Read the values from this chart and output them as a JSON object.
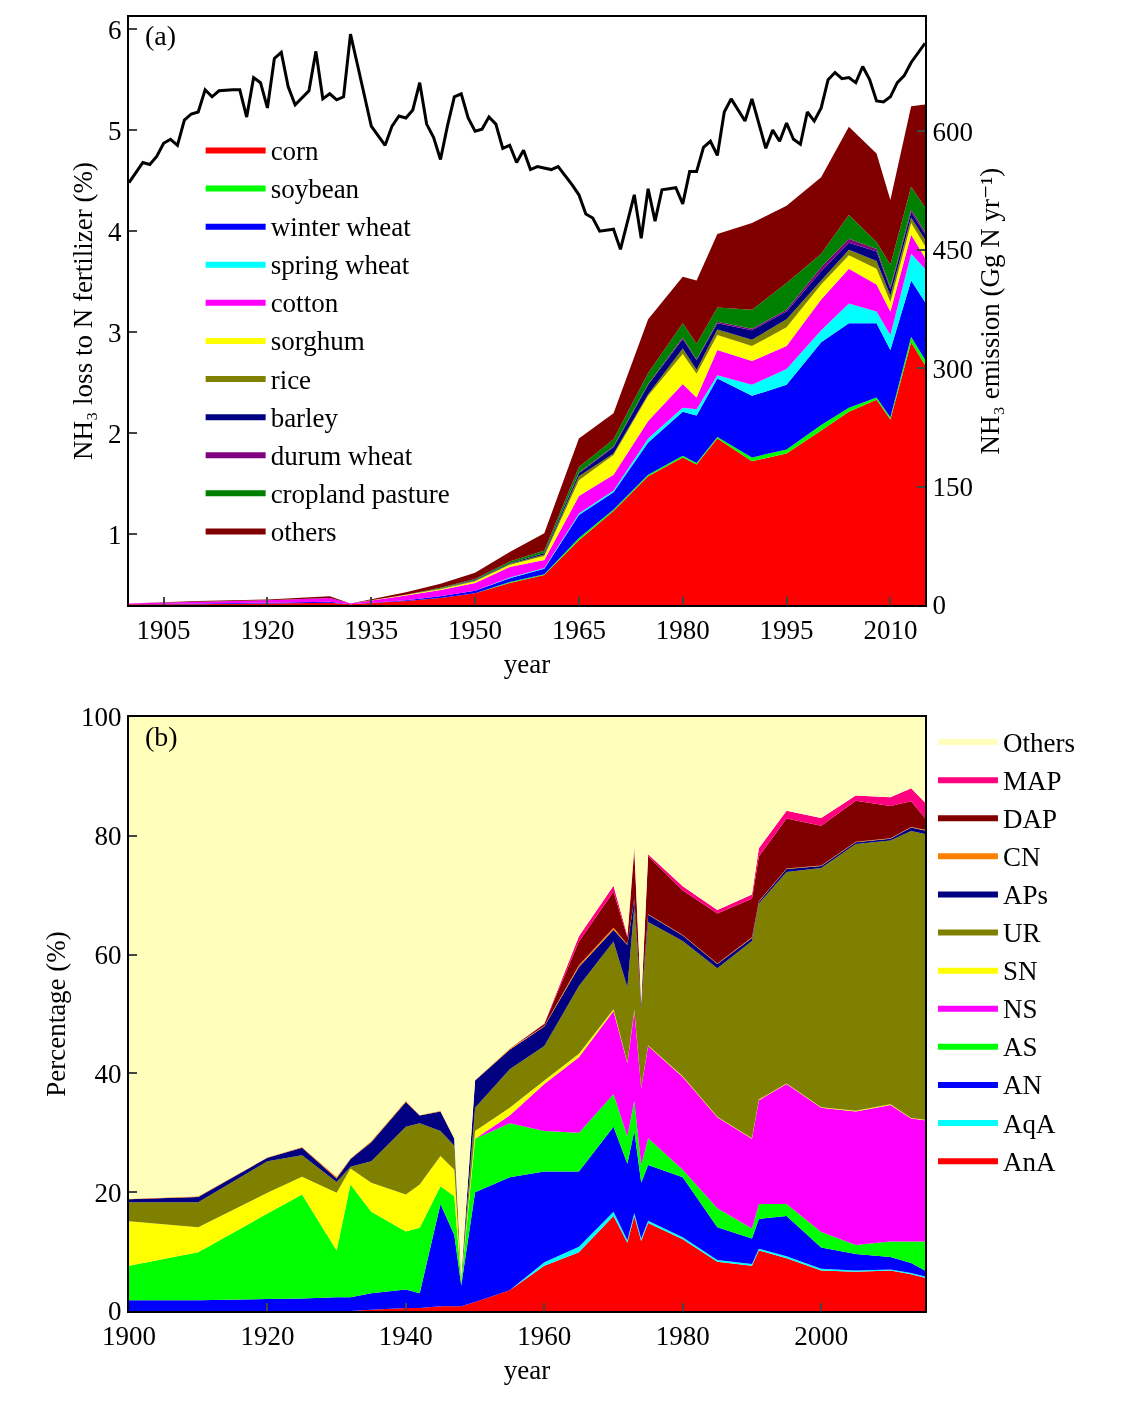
{
  "chart_data": [
    {
      "type": "area",
      "title": "(a)",
      "xlabel": "year",
      "ylabel": "NH₃ loss to N fertilizer (%)",
      "y2label": "NH₃ emission (Gg N yr⁻¹)",
      "stacked": true,
      "legend": "left",
      "xlim": [
        1900,
        2015
      ],
      "xticks": [
        1905,
        1920,
        1935,
        1950,
        1965,
        1980,
        1995,
        2010
      ],
      "ylim": [
        0.3,
        6.12
      ],
      "yticks": [
        1,
        2,
        3,
        4,
        5,
        6
      ],
      "y2lim": [
        0,
        745
      ],
      "y2ticks": [
        0,
        150,
        300,
        450,
        600
      ],
      "x": [
        1900,
        1910,
        1920,
        1929,
        1932,
        1940,
        1945,
        1950,
        1955,
        1960,
        1965,
        1970,
        1975,
        1980,
        1982,
        1985,
        1990,
        1995,
        2000,
        2004,
        2008,
        2010,
        2013,
        2015
      ],
      "series": [
        {
          "name": "corn",
          "color": "#ff0000",
          "axis": "y2",
          "values": [
            1,
            1,
            2,
            3,
            1,
            5,
            9,
            15,
            28,
            38,
            82,
            119,
            163,
            187,
            178,
            211,
            182,
            192,
            221,
            245,
            260,
            235,
            333,
            304
          ]
        },
        {
          "name": "soybean",
          "color": "#00ff00",
          "axis": "y2",
          "values": [
            0,
            0,
            0,
            0,
            0,
            0,
            0,
            0,
            1,
            1,
            3,
            2,
            2,
            2,
            2,
            2,
            5,
            5,
            7,
            5,
            3,
            3,
            7,
            7
          ]
        },
        {
          "name": "winter wheat",
          "color": "#0000ff",
          "axis": "y2",
          "values": [
            0,
            1,
            1,
            1,
            0,
            1,
            2,
            3,
            5,
            7,
            29,
            22,
            41,
            56,
            60,
            74,
            78,
            82,
            105,
            107,
            94,
            85,
            71,
            73
          ]
        },
        {
          "name": "spring wheat",
          "color": "#00ffff",
          "axis": "y2",
          "values": [
            0,
            0,
            0,
            0,
            0,
            0,
            0,
            0,
            1,
            1,
            2,
            2,
            5,
            5,
            8,
            4,
            14,
            20,
            15,
            25,
            15,
            19,
            34,
            42
          ]
        },
        {
          "name": "cotton",
          "color": "#ff00ff",
          "axis": "y2",
          "values": [
            1,
            2,
            3,
            5,
            1,
            6,
            8,
            10,
            13,
            10,
            22,
            20,
            22,
            30,
            15,
            32,
            30,
            29,
            39,
            44,
            34,
            30,
            24,
            14
          ]
        },
        {
          "name": "sorghum",
          "color": "#ffff00",
          "axis": "y2",
          "values": [
            0,
            0,
            0,
            0,
            0,
            1,
            1,
            2,
            3,
            5,
            20,
            25,
            32,
            38,
            30,
            19,
            19,
            24,
            19,
            17,
            20,
            12,
            15,
            15
          ]
        },
        {
          "name": "rice",
          "color": "#808000",
          "axis": "y2",
          "values": [
            0,
            0,
            0,
            0,
            0,
            0,
            1,
            1,
            1,
            2,
            5,
            2,
            2,
            7,
            5,
            7,
            8,
            10,
            5,
            7,
            10,
            8,
            7,
            8
          ]
        },
        {
          "name": "barley",
          "color": "#000080",
          "axis": "y2",
          "values": [
            0,
            0,
            0,
            0,
            0,
            0,
            0,
            1,
            1,
            2,
            4,
            8,
            12,
            12,
            12,
            8,
            12,
            10,
            12,
            9,
            12,
            8,
            7,
            7
          ]
        },
        {
          "name": "durum wheat",
          "color": "#800080",
          "axis": "y2",
          "values": [
            0,
            0,
            0,
            0,
            0,
            0,
            0,
            0,
            0,
            0,
            1,
            1,
            1,
            2,
            1,
            2,
            2,
            2,
            5,
            5,
            3,
            3,
            3,
            3
          ]
        },
        {
          "name": "cropland pasture",
          "color": "#008000",
          "axis": "y2",
          "values": [
            0,
            0,
            0,
            0,
            0,
            0,
            1,
            1,
            2,
            3,
            7,
            9,
            14,
            18,
            20,
            18,
            24,
            34,
            17,
            30,
            9,
            28,
            29,
            31
          ]
        },
        {
          "name": "others",
          "color": "#800000",
          "axis": "y2",
          "values": [
            0,
            1,
            1,
            2,
            0,
            3,
            5,
            8,
            12,
            22,
            36,
            33,
            68,
            59,
            80,
            93,
            110,
            98,
            97,
            112,
            112,
            82,
            102,
            130
          ]
        },
        {
          "type": "line",
          "color": "#000000",
          "line_style": "solid",
          "x": [
            1900,
            1902,
            1903,
            1904,
            1905,
            1906,
            1907,
            1908,
            1909,
            1910,
            1911,
            1912,
            1913,
            1915,
            1916,
            1917,
            1918,
            1919,
            1920,
            1921,
            1922,
            1923,
            1924,
            1926,
            1927,
            1928,
            1929,
            1930,
            1931,
            1932,
            1933,
            1935,
            1937,
            1938,
            1939,
            1940,
            1941,
            1942,
            1943,
            1944,
            1945,
            1946,
            1947,
            1948,
            1949,
            1950,
            1951,
            1952,
            1953,
            1954,
            1955,
            1956,
            1957,
            1958,
            1959,
            1961,
            1962,
            1964,
            1965,
            1966,
            1967,
            1968,
            1970,
            1971,
            1973,
            1974,
            1975,
            1976,
            1977,
            1979,
            1980,
            1981,
            1982,
            1983,
            1984,
            1985,
            1986,
            1987,
            1989,
            1990,
            1992,
            1993,
            1994,
            1995,
            1996,
            1997,
            1998,
            1999,
            2000,
            2001,
            2002,
            2003,
            2004,
            2005,
            2006,
            2007,
            2008,
            2009,
            2010,
            2011,
            2012,
            2013,
            2015
          ],
          "values": [
            4.48,
            4.68,
            4.66,
            4.74,
            4.87,
            4.91,
            4.85,
            5.1,
            5.16,
            5.18,
            5.4,
            5.33,
            5.39,
            5.4,
            5.4,
            5.13,
            5.52,
            5.47,
            5.22,
            5.71,
            5.77,
            5.43,
            5.25,
            5.39,
            5.78,
            5.31,
            5.36,
            5.3,
            5.33,
            5.95,
            5.65,
            5.04,
            4.85,
            5.04,
            5.14,
            5.12,
            5.2,
            5.47,
            5.06,
            4.93,
            4.71,
            5.04,
            5.33,
            5.36,
            5.12,
            4.99,
            5.01,
            5.13,
            5.06,
            4.82,
            4.85,
            4.68,
            4.8,
            4.61,
            4.64,
            4.61,
            4.64,
            4.46,
            4.36,
            4.17,
            4.13,
            4.0,
            4.02,
            3.82,
            4.36,
            3.93,
            4.42,
            4.1,
            4.41,
            4.43,
            4.27,
            4.59,
            4.59,
            4.83,
            4.89,
            4.75,
            5.18,
            5.31,
            5.09,
            5.31,
            4.82,
            5.0,
            4.89,
            5.07,
            4.91,
            4.86,
            5.18,
            5.09,
            5.22,
            5.5,
            5.57,
            5.51,
            5.52,
            5.47,
            5.63,
            5.5,
            5.29,
            5.28,
            5.33,
            5.47,
            5.54,
            5.67,
            5.86
          ]
        }
      ]
    },
    {
      "type": "area",
      "title": "(b)",
      "xlabel": "year",
      "ylabel": "Percentage (%)",
      "stacked": true,
      "legend": "right",
      "xlim": [
        1900,
        2015
      ],
      "xticks": [
        1900,
        1920,
        1940,
        1960,
        1980,
        2000
      ],
      "ylim": [
        0,
        100
      ],
      "yticks": [
        0,
        20,
        40,
        60,
        80,
        100
      ],
      "x": [
        1900,
        1910,
        1920,
        1925,
        1930,
        1932,
        1935,
        1940,
        1942,
        1945,
        1947,
        1948,
        1950,
        1955,
        1960,
        1965,
        1970,
        1972,
        1973,
        1974,
        1975,
        1980,
        1985,
        1990,
        1991,
        1995,
        2000,
        2005,
        2010,
        2013,
        2015
      ],
      "series": [
        {
          "name": "AnA",
          "color": "#ff0000",
          "values": [
            0,
            0,
            0,
            0,
            0,
            0,
            0.2,
            0.5,
            0.5,
            0.8,
            0.8,
            0.8,
            1.5,
            3.5,
            7.6,
            9.9,
            16.0,
            11.5,
            16.0,
            11.8,
            14.8,
            12.1,
            8.3,
            7.6,
            10.2,
            8.9,
            6.8,
            6.6,
            6.8,
            6.2,
            5.6
          ]
        },
        {
          "name": "AqA",
          "color": "#00ffff",
          "values": [
            0,
            0,
            0,
            0,
            0,
            0,
            0,
            0,
            0,
            0,
            0,
            0,
            0,
            0,
            0.6,
            0.9,
            0.7,
            0.4,
            0.5,
            0.4,
            0.4,
            0.3,
            0.3,
            0.3,
            0.3,
            0.3,
            0.3,
            0.2,
            0.2,
            0.2,
            0.2
          ]
        },
        {
          "name": "AN",
          "color": "#0000ff",
          "values": [
            1.8,
            1.8,
            2,
            2.1,
            2.3,
            2.3,
            2.8,
            3.1,
            2.5,
            17.2,
            12.0,
            3.5,
            18.5,
            19.0,
            15.3,
            12.7,
            14.3,
            12.9,
            13.8,
            9.4,
            9.4,
            10.1,
            5.5,
            4.3,
            5.0,
            6.8,
            3.6,
            2.8,
            2.1,
            1.7,
            1.0
          ]
        },
        {
          "name": "AS",
          "color": "#00ff00",
          "values": [
            5.8,
            8.1,
            14.4,
            17.5,
            7.9,
            19.0,
            13.7,
            9.8,
            11.0,
            3.0,
            6.5,
            0.6,
            9.0,
            9.1,
            6.8,
            6.5,
            5.5,
            4.6,
            5.1,
            3.0,
            4.5,
            1.3,
            3.2,
            1.7,
            2.5,
            2.0,
            2.6,
            1.5,
            2.6,
            3.6,
            4.9
          ]
        },
        {
          "name": "NS",
          "color": "#ff00ff",
          "values": [
            0,
            0,
            0,
            0,
            0,
            0,
            0,
            0,
            0,
            0,
            0,
            0,
            0,
            1.3,
            7.9,
            12.7,
            14.0,
            12.3,
            15.1,
            12.9,
            15.5,
            15.6,
            15.3,
            15.1,
            17.5,
            20.2,
            20.9,
            22.5,
            23.0,
            20.7,
            20.4
          ]
        },
        {
          "name": "SN",
          "color": "#ffff00",
          "values": [
            7.5,
            4.2,
            3.5,
            3.0,
            9.7,
            2.7,
            4.9,
            6.2,
            7.3,
            5.1,
            4.5,
            0.3,
            1.3,
            1.3,
            0.6,
            0.6,
            0.3,
            0.1,
            0.2,
            0.1,
            0.1,
            0.1,
            0.1,
            0.1,
            0.1,
            0.1,
            0.1,
            0.1,
            0.1,
            0.1,
            0.1
          ]
        },
        {
          "name": "UR",
          "color": "#808000",
          "values": [
            3.2,
            4.2,
            5.3,
            3.6,
            1.8,
            0.3,
            3.6,
            11.4,
            10.3,
            4.2,
            4.0,
            0.3,
            3.9,
            6.5,
            5.8,
            11.4,
            11.4,
            12.7,
            17.3,
            13.4,
            20.8,
            22.8,
            25.0,
            33.2,
            33.0,
            35.6,
            40.3,
            44.9,
            44.4,
            48.3,
            48.1
          ]
        },
        {
          "name": "APs",
          "color": "#000080",
          "values": [
            0.5,
            0.9,
            0.6,
            1.3,
            0.6,
            1.3,
            3.2,
            4.2,
            1.3,
            3.3,
            1.2,
            0.2,
            4.6,
            3.3,
            3.3,
            3.2,
            2.0,
            7.1,
            1.3,
            0.6,
            1.2,
            0.9,
            0.7,
            0.5,
            0.3,
            0.5,
            0.3,
            0.3,
            0.3,
            0.6,
            0.6
          ]
        },
        {
          "name": "CN",
          "color": "#ff8000",
          "values": [
            0.1,
            0.1,
            0.1,
            0.1,
            0.3,
            0.1,
            0.2,
            0.2,
            0.1,
            0.1,
            0.1,
            0,
            0.1,
            0.2,
            0.1,
            0.3,
            0.3,
            0.1,
            0.1,
            0.1,
            0.1,
            0.1,
            0.1,
            0.1,
            0.1,
            0.1,
            0.1,
            0.1,
            0.1,
            0.1,
            0.1
          ]
        },
        {
          "name": "DAP",
          "color": "#800000",
          "values": [
            0,
            0,
            0,
            0,
            0,
            0,
            0,
            0,
            0,
            0,
            0,
            0,
            0,
            0,
            0.3,
            4.0,
            6.1,
            1.2,
            8.1,
            0.1,
            9.8,
            7.5,
            8.4,
            6.5,
            7.5,
            8.4,
            6.7,
            6.9,
            5.4,
            4.3,
            2.0
          ]
        },
        {
          "name": "MAP",
          "color": "#ff0080",
          "values": [
            0,
            0,
            0,
            0,
            0,
            0,
            0,
            0,
            0,
            0,
            0,
            0,
            0,
            0,
            0.1,
            0.9,
            1.0,
            0.3,
            0.7,
            0.1,
            0.3,
            0.7,
            0.6,
            0.7,
            1.4,
            1.3,
            1.3,
            0.9,
            1.5,
            2.2,
            2.6
          ]
        },
        {
          "name": "Others",
          "color": "#ffffbb",
          "values": [
            81.1,
            80.7,
            74.1,
            72.4,
            77.4,
            74.3,
            71.4,
            64.6,
            67.0,
            66.3,
            70.9,
            94.3,
            61.1,
            55.8,
            51.6,
            36.9,
            28.4,
            36.8,
            21.8,
            48.1,
            23.1,
            28.5,
            32.5,
            29.9,
            22.1,
            15.8,
            17.0,
            13.2,
            13.5,
            12.0,
            14.4
          ]
        }
      ]
    }
  ]
}
